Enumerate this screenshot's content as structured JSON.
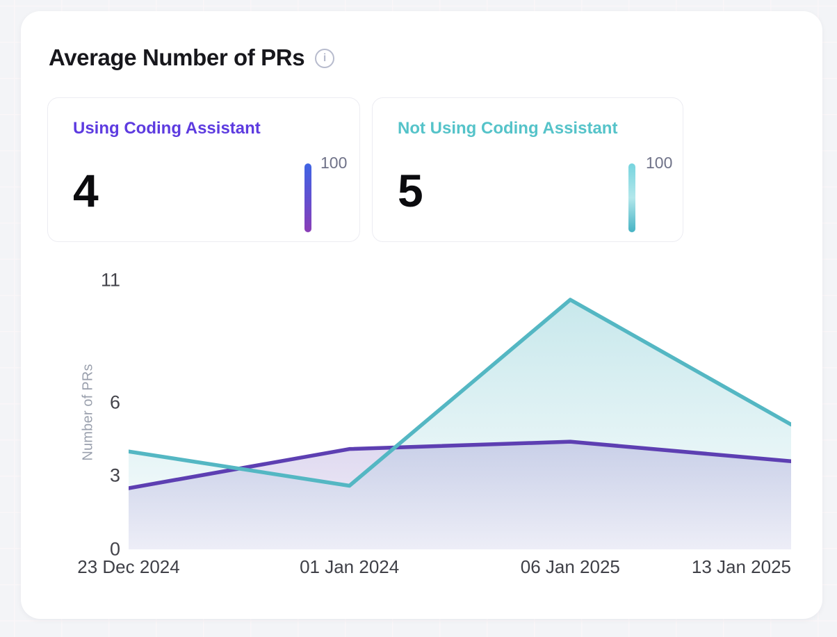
{
  "title": "Average Number of PRs",
  "icons": {
    "info": "i"
  },
  "summary_cards": [
    {
      "label": "Using Coding Assistant",
      "value": "4",
      "gauge_value": "100",
      "label_color": "#5d3be0",
      "bar_gradient": [
        "#3f64e4",
        "#6150d0",
        "#8a3db6"
      ]
    },
    {
      "label": "Not Using Coding Assistant",
      "value": "5",
      "gauge_value": "100",
      "label_color": "#55c3c9",
      "bar_gradient": [
        "#76d4de",
        "#b2e7eb",
        "#46b3c4"
      ]
    }
  ],
  "chart_data": {
    "type": "area",
    "title": "Average Number of PRs",
    "x": [
      "23 Dec 2024",
      "01 Jan 2024",
      "06 Jan 2025",
      "13 Jan 2025"
    ],
    "series": [
      {
        "name": "Using Coding Assistant",
        "values": [
          2.5,
          4.1,
          4.4,
          3.6
        ],
        "line_color": "#5d3fb2",
        "fill_top": "rgba(93,63,178,0.20)",
        "fill_bottom": "rgba(93,63,178,0.08)"
      },
      {
        "name": "Not Using Coding Assistant",
        "values": [
          4.0,
          2.6,
          10.2,
          5.1
        ],
        "line_color": "#54b7c3",
        "fill_top": "rgba(84,183,195,0.32)",
        "fill_bottom": "rgba(84,183,195,0.03)"
      }
    ],
    "xlabel": "",
    "ylabel": "Number of PRs",
    "yticks": [
      0,
      3,
      6,
      11
    ],
    "ylim": [
      0,
      11.08
    ],
    "grid": false,
    "legend_position": "none"
  }
}
